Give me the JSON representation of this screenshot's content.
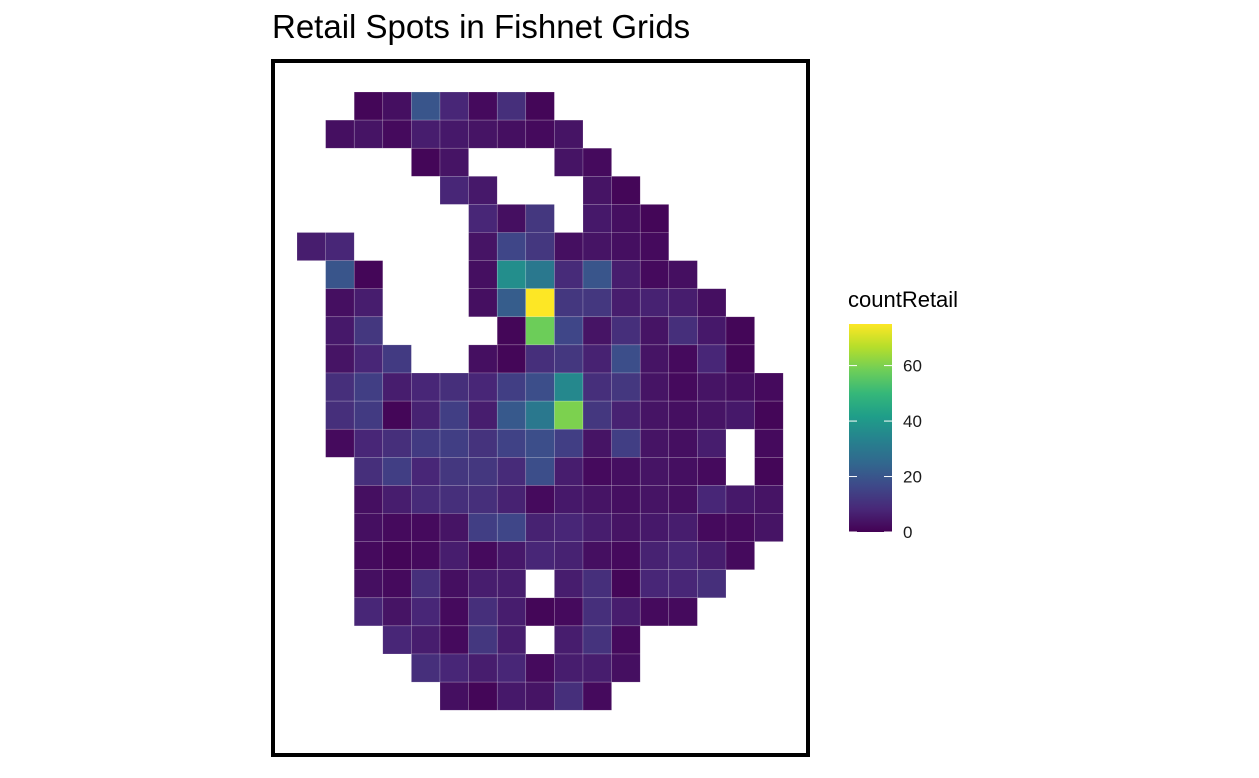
{
  "chart_data": {
    "type": "heatmap",
    "title": "Retail Spots in Fishnet Grids",
    "legend_title": "countRetail",
    "legend_position": "right",
    "color_scale": "viridis",
    "value_range": [
      0,
      75
    ],
    "legend_ticks": [
      0,
      20,
      40,
      60
    ],
    "grid": false,
    "rows": [
      [
        null,
        null,
        1,
        3,
        20,
        8,
        2,
        10,
        1,
        null,
        null,
        null,
        null,
        null,
        null,
        null,
        null
      ],
      [
        null,
        3,
        4,
        2,
        6,
        5,
        4,
        3,
        2,
        4,
        null,
        null,
        null,
        null,
        null,
        null,
        null
      ],
      [
        null,
        null,
        null,
        null,
        1,
        4,
        null,
        null,
        null,
        4,
        2,
        null,
        null,
        null,
        null,
        null,
        null
      ],
      [
        null,
        null,
        null,
        null,
        null,
        8,
        5,
        null,
        null,
        null,
        4,
        1,
        null,
        null,
        null,
        null,
        null
      ],
      [
        null,
        null,
        null,
        null,
        null,
        null,
        8,
        3,
        12,
        null,
        5,
        3,
        1,
        null,
        null,
        null,
        null
      ],
      [
        6,
        8,
        null,
        null,
        null,
        null,
        4,
        16,
        12,
        3,
        4,
        3,
        2,
        null,
        null,
        null,
        null
      ],
      [
        null,
        20,
        1,
        null,
        null,
        null,
        3,
        37,
        30,
        9,
        20,
        6,
        2,
        3,
        null,
        null,
        null
      ],
      [
        null,
        3,
        6,
        null,
        null,
        null,
        3,
        22,
        75,
        12,
        12,
        6,
        7,
        6,
        3,
        null,
        null
      ],
      [
        null,
        5,
        12,
        null,
        null,
        null,
        null,
        1,
        58,
        16,
        4,
        10,
        4,
        10,
        5,
        1,
        null
      ],
      [
        null,
        4,
        8,
        13,
        null,
        null,
        3,
        1,
        10,
        12,
        7,
        18,
        4,
        2,
        8,
        1,
        null
      ],
      [
        null,
        10,
        14,
        6,
        8,
        10,
        8,
        14,
        18,
        35,
        10,
        12,
        4,
        2,
        4,
        3,
        2
      ],
      [
        null,
        10,
        13,
        1,
        7,
        14,
        6,
        21,
        30,
        60,
        12,
        7,
        4,
        3,
        4,
        5,
        1
      ],
      [
        null,
        2,
        8,
        10,
        13,
        14,
        11,
        15,
        18,
        14,
        4,
        14,
        4,
        3,
        6,
        null,
        2
      ],
      [
        null,
        null,
        10,
        14,
        8,
        12,
        12,
        9,
        18,
        6,
        2,
        3,
        4,
        3,
        2,
        null,
        1
      ],
      [
        null,
        null,
        3,
        6,
        9,
        10,
        10,
        7,
        2,
        5,
        4,
        3,
        4,
        3,
        8,
        5,
        4
      ],
      [
        null,
        null,
        3,
        2,
        2,
        4,
        14,
        16,
        7,
        8,
        6,
        4,
        5,
        6,
        2,
        2,
        4
      ],
      [
        null,
        null,
        2,
        1,
        2,
        6,
        2,
        5,
        8,
        7,
        3,
        2,
        7,
        8,
        6,
        2,
        null
      ],
      [
        null,
        null,
        3,
        2,
        10,
        3,
        6,
        6,
        null,
        6,
        10,
        1,
        8,
        8,
        10,
        null,
        null
      ],
      [
        null,
        null,
        8,
        4,
        8,
        2,
        10,
        6,
        1,
        2,
        10,
        6,
        2,
        2,
        null,
        null,
        null
      ],
      [
        null,
        null,
        null,
        8,
        6,
        2,
        12,
        6,
        null,
        6,
        11,
        2,
        null,
        null,
        null,
        null,
        null
      ],
      [
        null,
        null,
        null,
        null,
        10,
        8,
        6,
        8,
        2,
        6,
        6,
        3,
        null,
        null,
        null,
        null,
        null
      ],
      [
        null,
        null,
        null,
        null,
        null,
        3,
        1,
        5,
        4,
        10,
        2,
        null,
        null,
        null,
        null,
        null,
        null
      ]
    ]
  }
}
